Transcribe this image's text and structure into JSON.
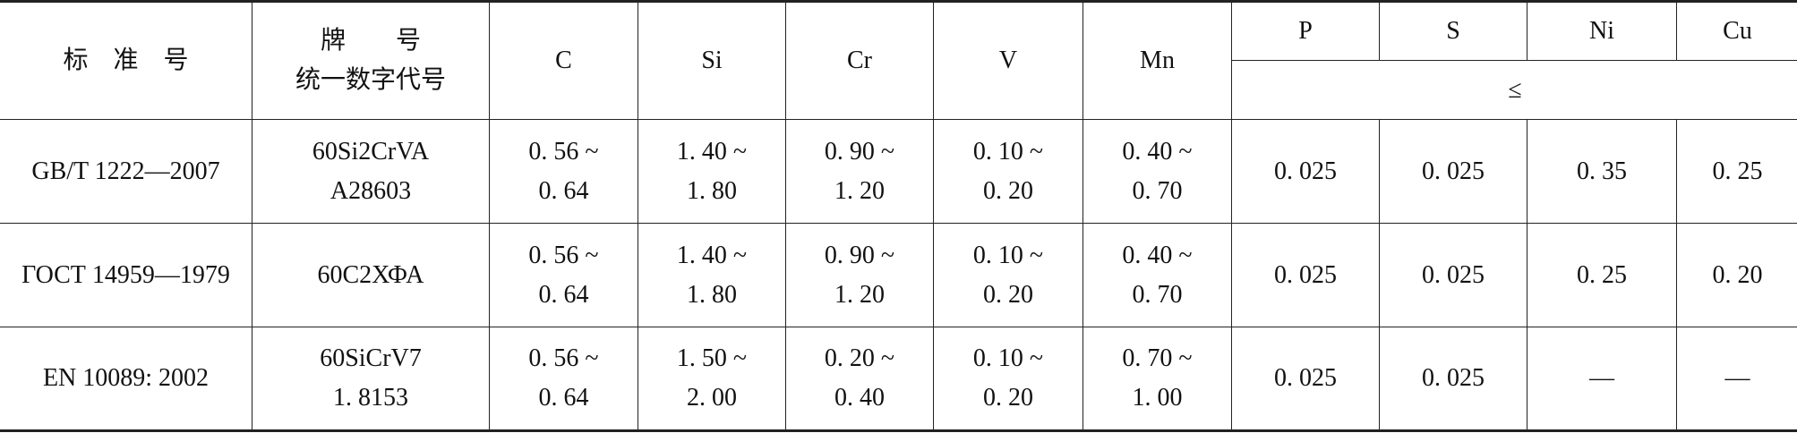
{
  "table": {
    "header": {
      "columns": [
        [
          "标　准　号"
        ],
        [
          "牌　　号",
          "统一数字代号"
        ],
        [
          "C"
        ],
        [
          "Si"
        ],
        [
          "Cr"
        ],
        [
          "V"
        ],
        [
          "Mn"
        ],
        [
          "P"
        ],
        [
          "S"
        ],
        [
          "Ni"
        ],
        [
          "Cu"
        ]
      ],
      "limit_note": "≤"
    },
    "rows": [
      [
        [
          "GB/T 1222—2007"
        ],
        [
          "60Si2CrVA",
          "A28603"
        ],
        [
          "0. 56 ~",
          "0. 64"
        ],
        [
          "1. 40 ~",
          "1. 80"
        ],
        [
          "0. 90 ~",
          "1. 20"
        ],
        [
          "0. 10 ~",
          "0. 20"
        ],
        [
          "0. 40 ~",
          "0. 70"
        ],
        [
          "0. 025"
        ],
        [
          "0. 025"
        ],
        [
          "0. 35"
        ],
        [
          "0. 25"
        ]
      ],
      [
        [
          "ГОСТ 14959—1979"
        ],
        [
          "60С2ХФА"
        ],
        [
          "0. 56 ~",
          "0. 64"
        ],
        [
          "1. 40 ~",
          "1. 80"
        ],
        [
          "0. 90 ~",
          "1. 20"
        ],
        [
          "0. 10 ~",
          "0. 20"
        ],
        [
          "0. 40 ~",
          "0. 70"
        ],
        [
          "0. 025"
        ],
        [
          "0. 025"
        ],
        [
          "0. 25"
        ],
        [
          "0. 20"
        ]
      ],
      [
        [
          "EN 10089: 2002"
        ],
        [
          "60SiCrV7",
          "1. 8153"
        ],
        [
          "0. 56 ~",
          "0. 64"
        ],
        [
          "1. 50 ~",
          "2. 00"
        ],
        [
          "0. 20 ~",
          "0. 40"
        ],
        [
          "0. 10 ~",
          "0. 20"
        ],
        [
          "0. 70 ~",
          "1. 00"
        ],
        [
          "0. 025"
        ],
        [
          "0. 025"
        ],
        [
          "—"
        ],
        [
          "—"
        ]
      ]
    ]
  }
}
